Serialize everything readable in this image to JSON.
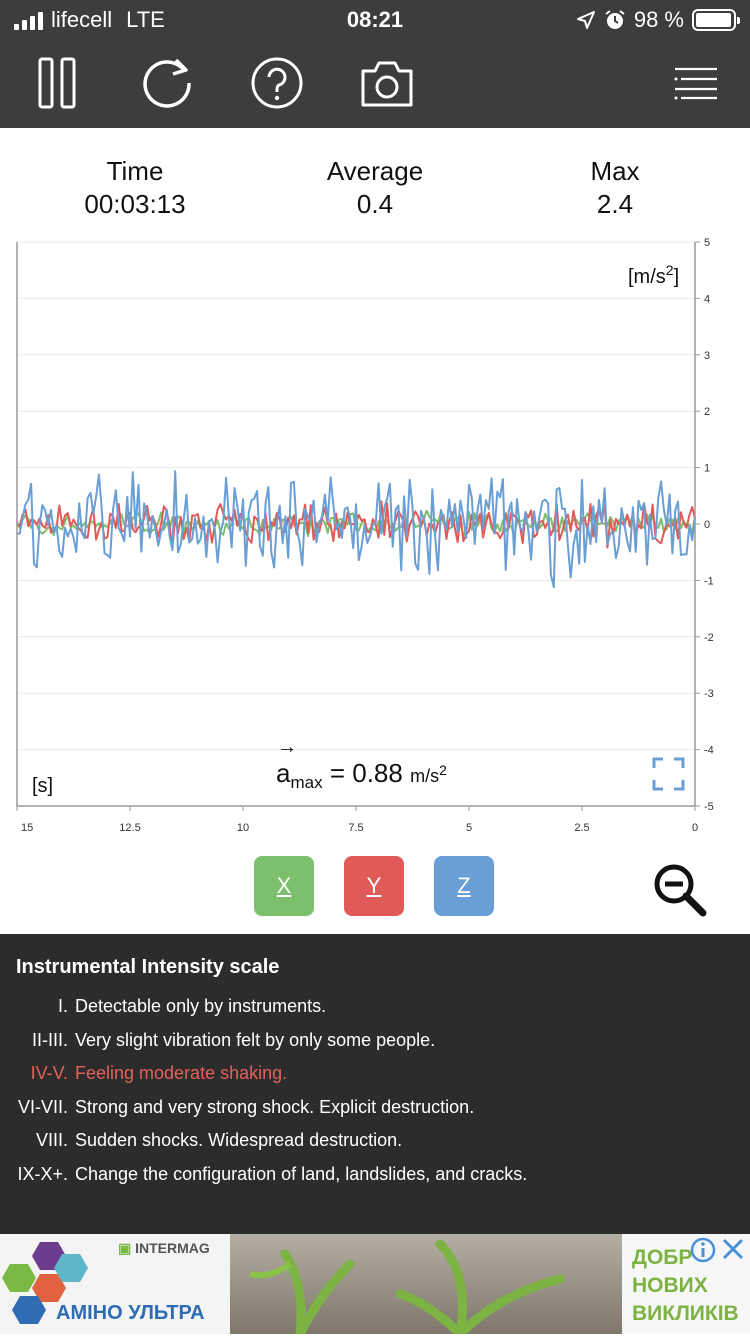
{
  "status_bar": {
    "carrier": "lifecell",
    "network": "LTE",
    "time": "08:21",
    "battery_text": "98 %",
    "battery_level": 0.98
  },
  "toolbar": {
    "icons": [
      "pause-icon",
      "refresh-icon",
      "help-icon",
      "camera-icon",
      "menu-icon"
    ]
  },
  "stats": {
    "time_label": "Time",
    "time_value": "00:03:13",
    "average_label": "Average",
    "average_value": "0.4",
    "max_label": "Max",
    "max_value": "2.4"
  },
  "chart_data": {
    "type": "line",
    "y_unit": "[m/s2]",
    "x_unit": "[s]",
    "xlim": [
      15,
      0
    ],
    "ylim": [
      -5,
      5
    ],
    "x_ticks": [
      "15",
      "12.5",
      "10",
      "7.5",
      "5",
      "2.5",
      "0"
    ],
    "y_ticks": [
      "5",
      "4",
      "3",
      "2",
      "1",
      "0",
      "-1",
      "-2",
      "-3",
      "-4",
      "-5"
    ],
    "grid": true,
    "series": [
      {
        "name": "X",
        "color": "#7cbf6c",
        "amplitude": 0.2
      },
      {
        "name": "Y",
        "color": "#e05a58",
        "amplitude": 0.35
      },
      {
        "name": "Z",
        "color": "#6a9fd6",
        "amplitude": 0.8
      }
    ]
  },
  "amax": {
    "symbol": "a",
    "subscript": "max",
    "equals": "= 0.88",
    "unit": "m/s",
    "unit_exp": "2"
  },
  "axis_buttons": [
    {
      "label": "X",
      "color": "#7cbf6c"
    },
    {
      "label": "Y",
      "color": "#e05a58"
    },
    {
      "label": "Z",
      "color": "#6a9fd6"
    }
  ],
  "intensity_scale": {
    "title": "Instrumental Intensity scale",
    "rows": [
      {
        "level": "I.",
        "desc": "Detectable only by instruments."
      },
      {
        "level": "II-III.",
        "desc": "Very slight vibration felt by only some people."
      },
      {
        "level": "IV-V.",
        "desc": "Feeling moderate shaking."
      },
      {
        "level": "VI-VII.",
        "desc": "Strong and very strong shock. Explicit destruction."
      },
      {
        "level": "VIII.",
        "desc": "Sudden shocks. Widespread destruction."
      },
      {
        "level": "IX-X+.",
        "desc": "Change the configuration of land, landslides, and cracks."
      }
    ],
    "active_index": 2,
    "active_color": "#e5605a"
  },
  "ad": {
    "brand": "INTERMAG",
    "product": "АМІНО УЛЬТРА",
    "slogan_1": "ДОБР",
    "slogan_2": "НОВИХ",
    "slogan_3": "ВИКЛИКІВ"
  }
}
